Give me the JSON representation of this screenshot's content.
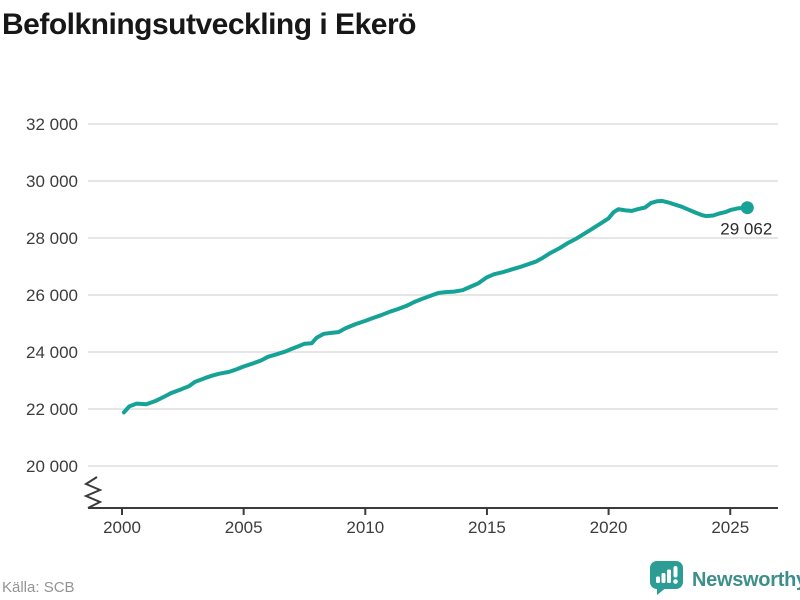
{
  "title": "Befolkningsutveckling i Ekerö",
  "source": "Källa: SCB",
  "brand": {
    "name": "Newsworthy"
  },
  "colors": {
    "line": "#16a296",
    "grid": "#e6e6e6",
    "axis": "#3b3b3b",
    "tick_text": "#3d3d3d",
    "title_text": "#171717",
    "source_text": "#949494",
    "brand_text": "#3e8e8a",
    "brand_bubble": "#2c9d94",
    "end_label_text": "#2b2b2b"
  },
  "chart_data": {
    "type": "line",
    "title": "Befolkningsutveckling i Ekerö",
    "xlabel": "",
    "ylabel": "",
    "x_unit": "year",
    "xlim": [
      1998.6,
      2027
    ],
    "ylim": [
      20000,
      32000
    ],
    "grid": "horizontal",
    "axis_break_bottom_left": true,
    "legend": "none",
    "yticks": [
      {
        "value": 32000,
        "label": "32 000"
      },
      {
        "value": 30000,
        "label": "30 000"
      },
      {
        "value": 28000,
        "label": "28 000"
      },
      {
        "value": 26000,
        "label": "26 000"
      },
      {
        "value": 24000,
        "label": "24 000"
      },
      {
        "value": 22000,
        "label": "22 000"
      },
      {
        "value": 20000,
        "label": "20 000"
      }
    ],
    "xticks": [
      {
        "value": 2000,
        "label": "2000"
      },
      {
        "value": 2005,
        "label": "2005"
      },
      {
        "value": 2010,
        "label": "2010"
      },
      {
        "value": 2015,
        "label": "2015"
      },
      {
        "value": 2020,
        "label": "2020"
      },
      {
        "value": 2025,
        "label": "2025"
      }
    ],
    "series": [
      {
        "name": "Befolkning i Ekerö",
        "color": "#16a296",
        "end_label": "29 062",
        "end_value": 29062,
        "points": [
          [
            2000.08,
            21880
          ],
          [
            2000.3,
            22090
          ],
          [
            2000.6,
            22190
          ],
          [
            2001.0,
            22170
          ],
          [
            2001.4,
            22290
          ],
          [
            2001.75,
            22440
          ],
          [
            2002.0,
            22550
          ],
          [
            2002.4,
            22680
          ],
          [
            2002.75,
            22800
          ],
          [
            2003.0,
            22950
          ],
          [
            2003.4,
            23080
          ],
          [
            2003.7,
            23170
          ],
          [
            2004.0,
            23240
          ],
          [
            2004.4,
            23300
          ],
          [
            2004.7,
            23390
          ],
          [
            2005.0,
            23490
          ],
          [
            2005.35,
            23590
          ],
          [
            2005.7,
            23700
          ],
          [
            2006.0,
            23830
          ],
          [
            2006.35,
            23920
          ],
          [
            2006.7,
            24010
          ],
          [
            2007.0,
            24120
          ],
          [
            2007.25,
            24200
          ],
          [
            2007.5,
            24290
          ],
          [
            2007.8,
            24310
          ],
          [
            2008.0,
            24500
          ],
          [
            2008.3,
            24640
          ],
          [
            2008.6,
            24670
          ],
          [
            2008.9,
            24700
          ],
          [
            2009.2,
            24840
          ],
          [
            2009.6,
            24980
          ],
          [
            2010.0,
            25090
          ],
          [
            2010.3,
            25190
          ],
          [
            2010.65,
            25290
          ],
          [
            2011.0,
            25410
          ],
          [
            2011.35,
            25510
          ],
          [
            2011.7,
            25620
          ],
          [
            2012.0,
            25750
          ],
          [
            2012.35,
            25870
          ],
          [
            2012.7,
            25980
          ],
          [
            2013.0,
            26070
          ],
          [
            2013.3,
            26100
          ],
          [
            2013.65,
            26120
          ],
          [
            2014.0,
            26170
          ],
          [
            2014.3,
            26280
          ],
          [
            2014.65,
            26410
          ],
          [
            2015.0,
            26620
          ],
          [
            2015.3,
            26730
          ],
          [
            2015.65,
            26800
          ],
          [
            2016.0,
            26890
          ],
          [
            2016.35,
            26980
          ],
          [
            2016.7,
            27080
          ],
          [
            2017.0,
            27170
          ],
          [
            2017.3,
            27310
          ],
          [
            2017.6,
            27470
          ],
          [
            2018.0,
            27650
          ],
          [
            2018.3,
            27810
          ],
          [
            2018.65,
            27970
          ],
          [
            2019.0,
            28150
          ],
          [
            2019.3,
            28310
          ],
          [
            2019.6,
            28470
          ],
          [
            2020.0,
            28690
          ],
          [
            2020.2,
            28900
          ],
          [
            2020.4,
            29010
          ],
          [
            2020.7,
            28970
          ],
          [
            2020.95,
            28950
          ],
          [
            2021.2,
            29010
          ],
          [
            2021.5,
            29070
          ],
          [
            2021.75,
            29230
          ],
          [
            2022.0,
            29290
          ],
          [
            2022.2,
            29300
          ],
          [
            2022.45,
            29250
          ],
          [
            2022.7,
            29180
          ],
          [
            2023.0,
            29100
          ],
          [
            2023.3,
            28990
          ],
          [
            2023.6,
            28880
          ],
          [
            2023.85,
            28800
          ],
          [
            2024.0,
            28770
          ],
          [
            2024.3,
            28790
          ],
          [
            2024.55,
            28860
          ],
          [
            2024.8,
            28910
          ],
          [
            2025.0,
            28980
          ],
          [
            2025.3,
            29040
          ],
          [
            2025.7,
            29062
          ]
        ]
      }
    ]
  }
}
